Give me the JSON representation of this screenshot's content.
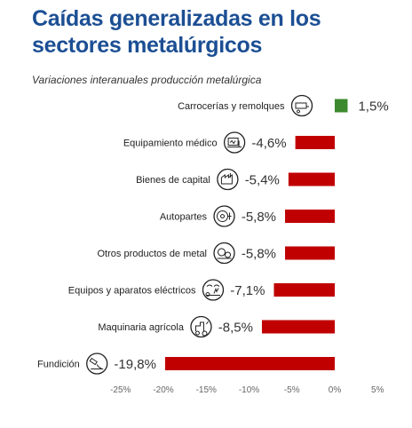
{
  "chart_data": {
    "type": "bar",
    "orientation": "horizontal",
    "title": "Caídas generalizadas en los sectores metalúrgicos",
    "subtitle": "Variaciones interanuales producción metalúrgica",
    "categories": [
      "Carrocerías y remolques",
      "Equipamiento médico",
      "Bienes de capital",
      "Autopartes",
      "Otros productos de metal",
      "Equipos y aparatos eléctricos",
      "Maquinaria agrícola",
      "Fundición"
    ],
    "values": [
      1.5,
      -4.6,
      -5.4,
      -5.8,
      -5.8,
      -7.1,
      -8.5,
      -19.8
    ],
    "value_labels": [
      "1,5%",
      "-4,6%",
      "-5,4%",
      "-5,8%",
      "-5,8%",
      "-7,1%",
      "-8,5%",
      "-19,8%"
    ],
    "icons": [
      "trailer-icon",
      "medical-equipment-icon",
      "capital-goods-icon",
      "auto-parts-icon",
      "metal-products-icon",
      "electrical-equipment-icon",
      "agricultural-machinery-icon",
      "foundry-icon"
    ],
    "xlim": [
      -25,
      5
    ],
    "xticks": [
      -25,
      -20,
      -15,
      -10,
      -5,
      0,
      5
    ],
    "xtick_labels": [
      "-25%",
      "-20%",
      "-15%",
      "-10%",
      "-5%",
      "0%",
      "5%"
    ],
    "grid": false,
    "colors": {
      "positive": "#3c8a2e",
      "negative": "#c00000",
      "title": "#1c4f94"
    }
  }
}
